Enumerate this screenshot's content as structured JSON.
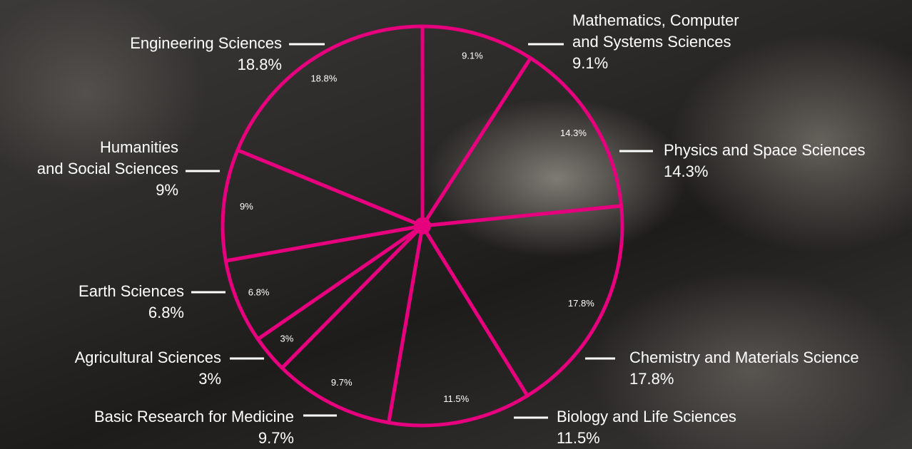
{
  "chart_data": {
    "type": "pie",
    "categories": [
      [
        "Mathematics, Computer",
        "and Systems Sciences"
      ],
      [
        "Physics and Space Sciences"
      ],
      [
        "Chemistry and Materials Science"
      ],
      [
        "Biology and Life Sciences"
      ],
      [
        "Basic Research for Medicine"
      ],
      [
        "Agricultural Sciences"
      ],
      [
        "Earth Sciences"
      ],
      [
        "Humanities",
        "and Social Sciences"
      ],
      [
        "Engineering Sciences"
      ]
    ],
    "values": [
      9.1,
      14.3,
      17.8,
      11.5,
      9.7,
      3,
      6.8,
      9,
      18.8
    ],
    "value_labels": [
      "9.1%",
      "14.3%",
      "17.8%",
      "11.5%",
      "9.7%",
      "3%",
      "6.8%",
      "9%",
      "18.8%"
    ],
    "color": "#e6007e"
  }
}
